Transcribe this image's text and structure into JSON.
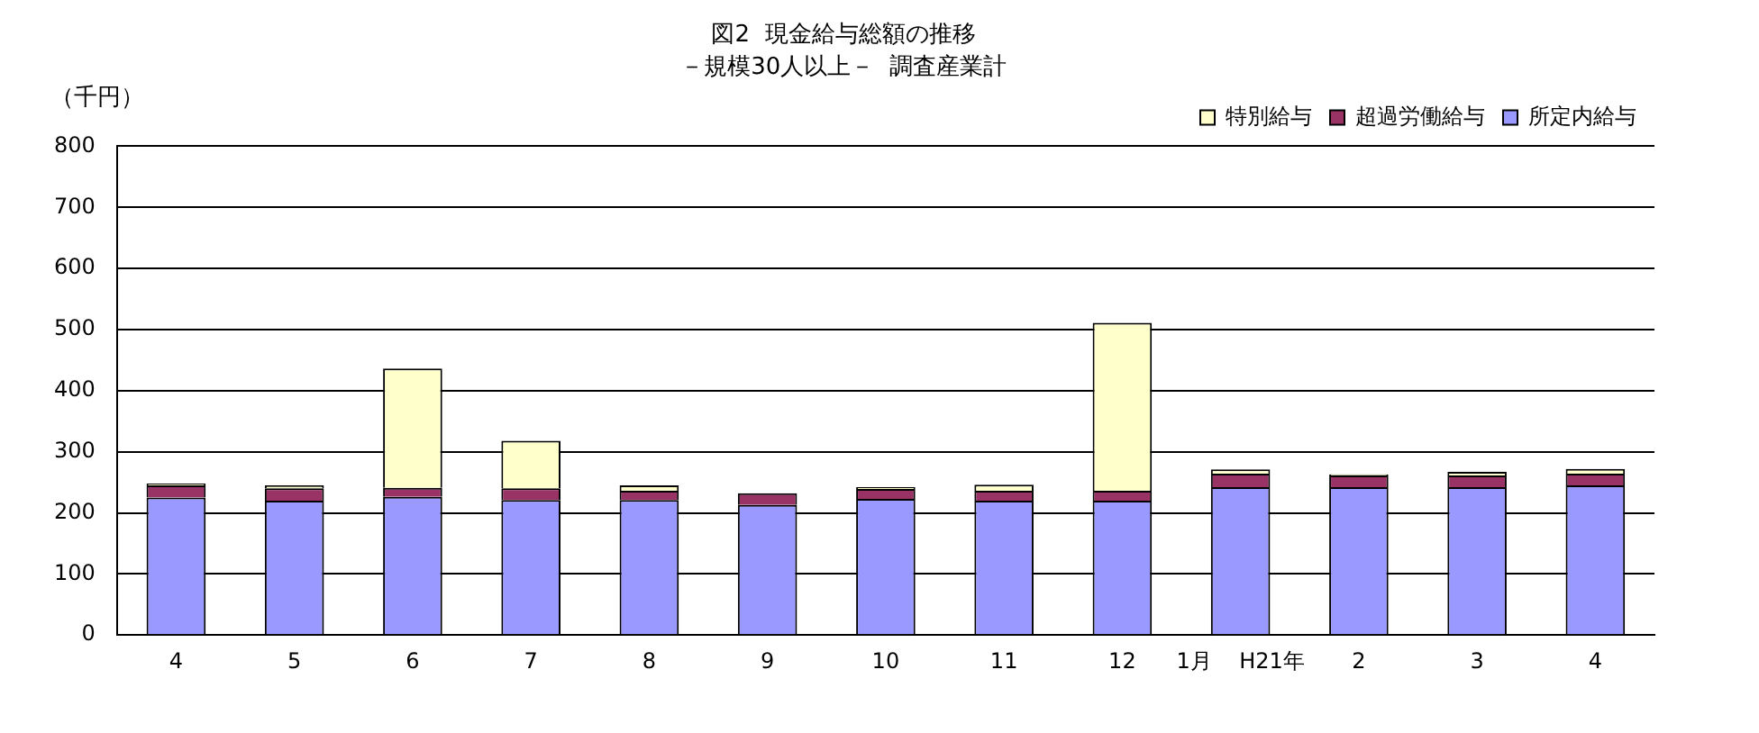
{
  "chart_data": {
    "type": "bar",
    "title": "図2  現金給与総額の推移",
    "subtitle": "－規模30人以上－  調査産業計",
    "ylabel": "（千円）",
    "categories": [
      "4",
      "5",
      "6",
      "7",
      "8",
      "9",
      "10",
      "11",
      "12",
      "1月    H21年",
      "2",
      "3",
      "4"
    ],
    "stacked": true,
    "series": [
      {
        "name": "所定内給与",
        "color": "#9999ff",
        "values": [
          225,
          220,
          226,
          221,
          221,
          213,
          223,
          220,
          220,
          242,
          242,
          242,
          245
        ]
      },
      {
        "name": "超過労働給与",
        "color": "#993366",
        "values": [
          20,
          20,
          15,
          19,
          15,
          19,
          16,
          16,
          16,
          22,
          19,
          19,
          19
        ]
      },
      {
        "name": "特別給与",
        "color": "#ffffcc",
        "values": [
          3,
          5,
          195,
          78,
          9,
          null,
          3,
          10,
          275,
          7,
          2,
          6,
          8
        ]
      }
    ],
    "ylim": [
      0,
      800
    ],
    "yticks": [
      0,
      100,
      200,
      300,
      400,
      500,
      600,
      700,
      800
    ],
    "grid": "y",
    "legend": "top right"
  }
}
